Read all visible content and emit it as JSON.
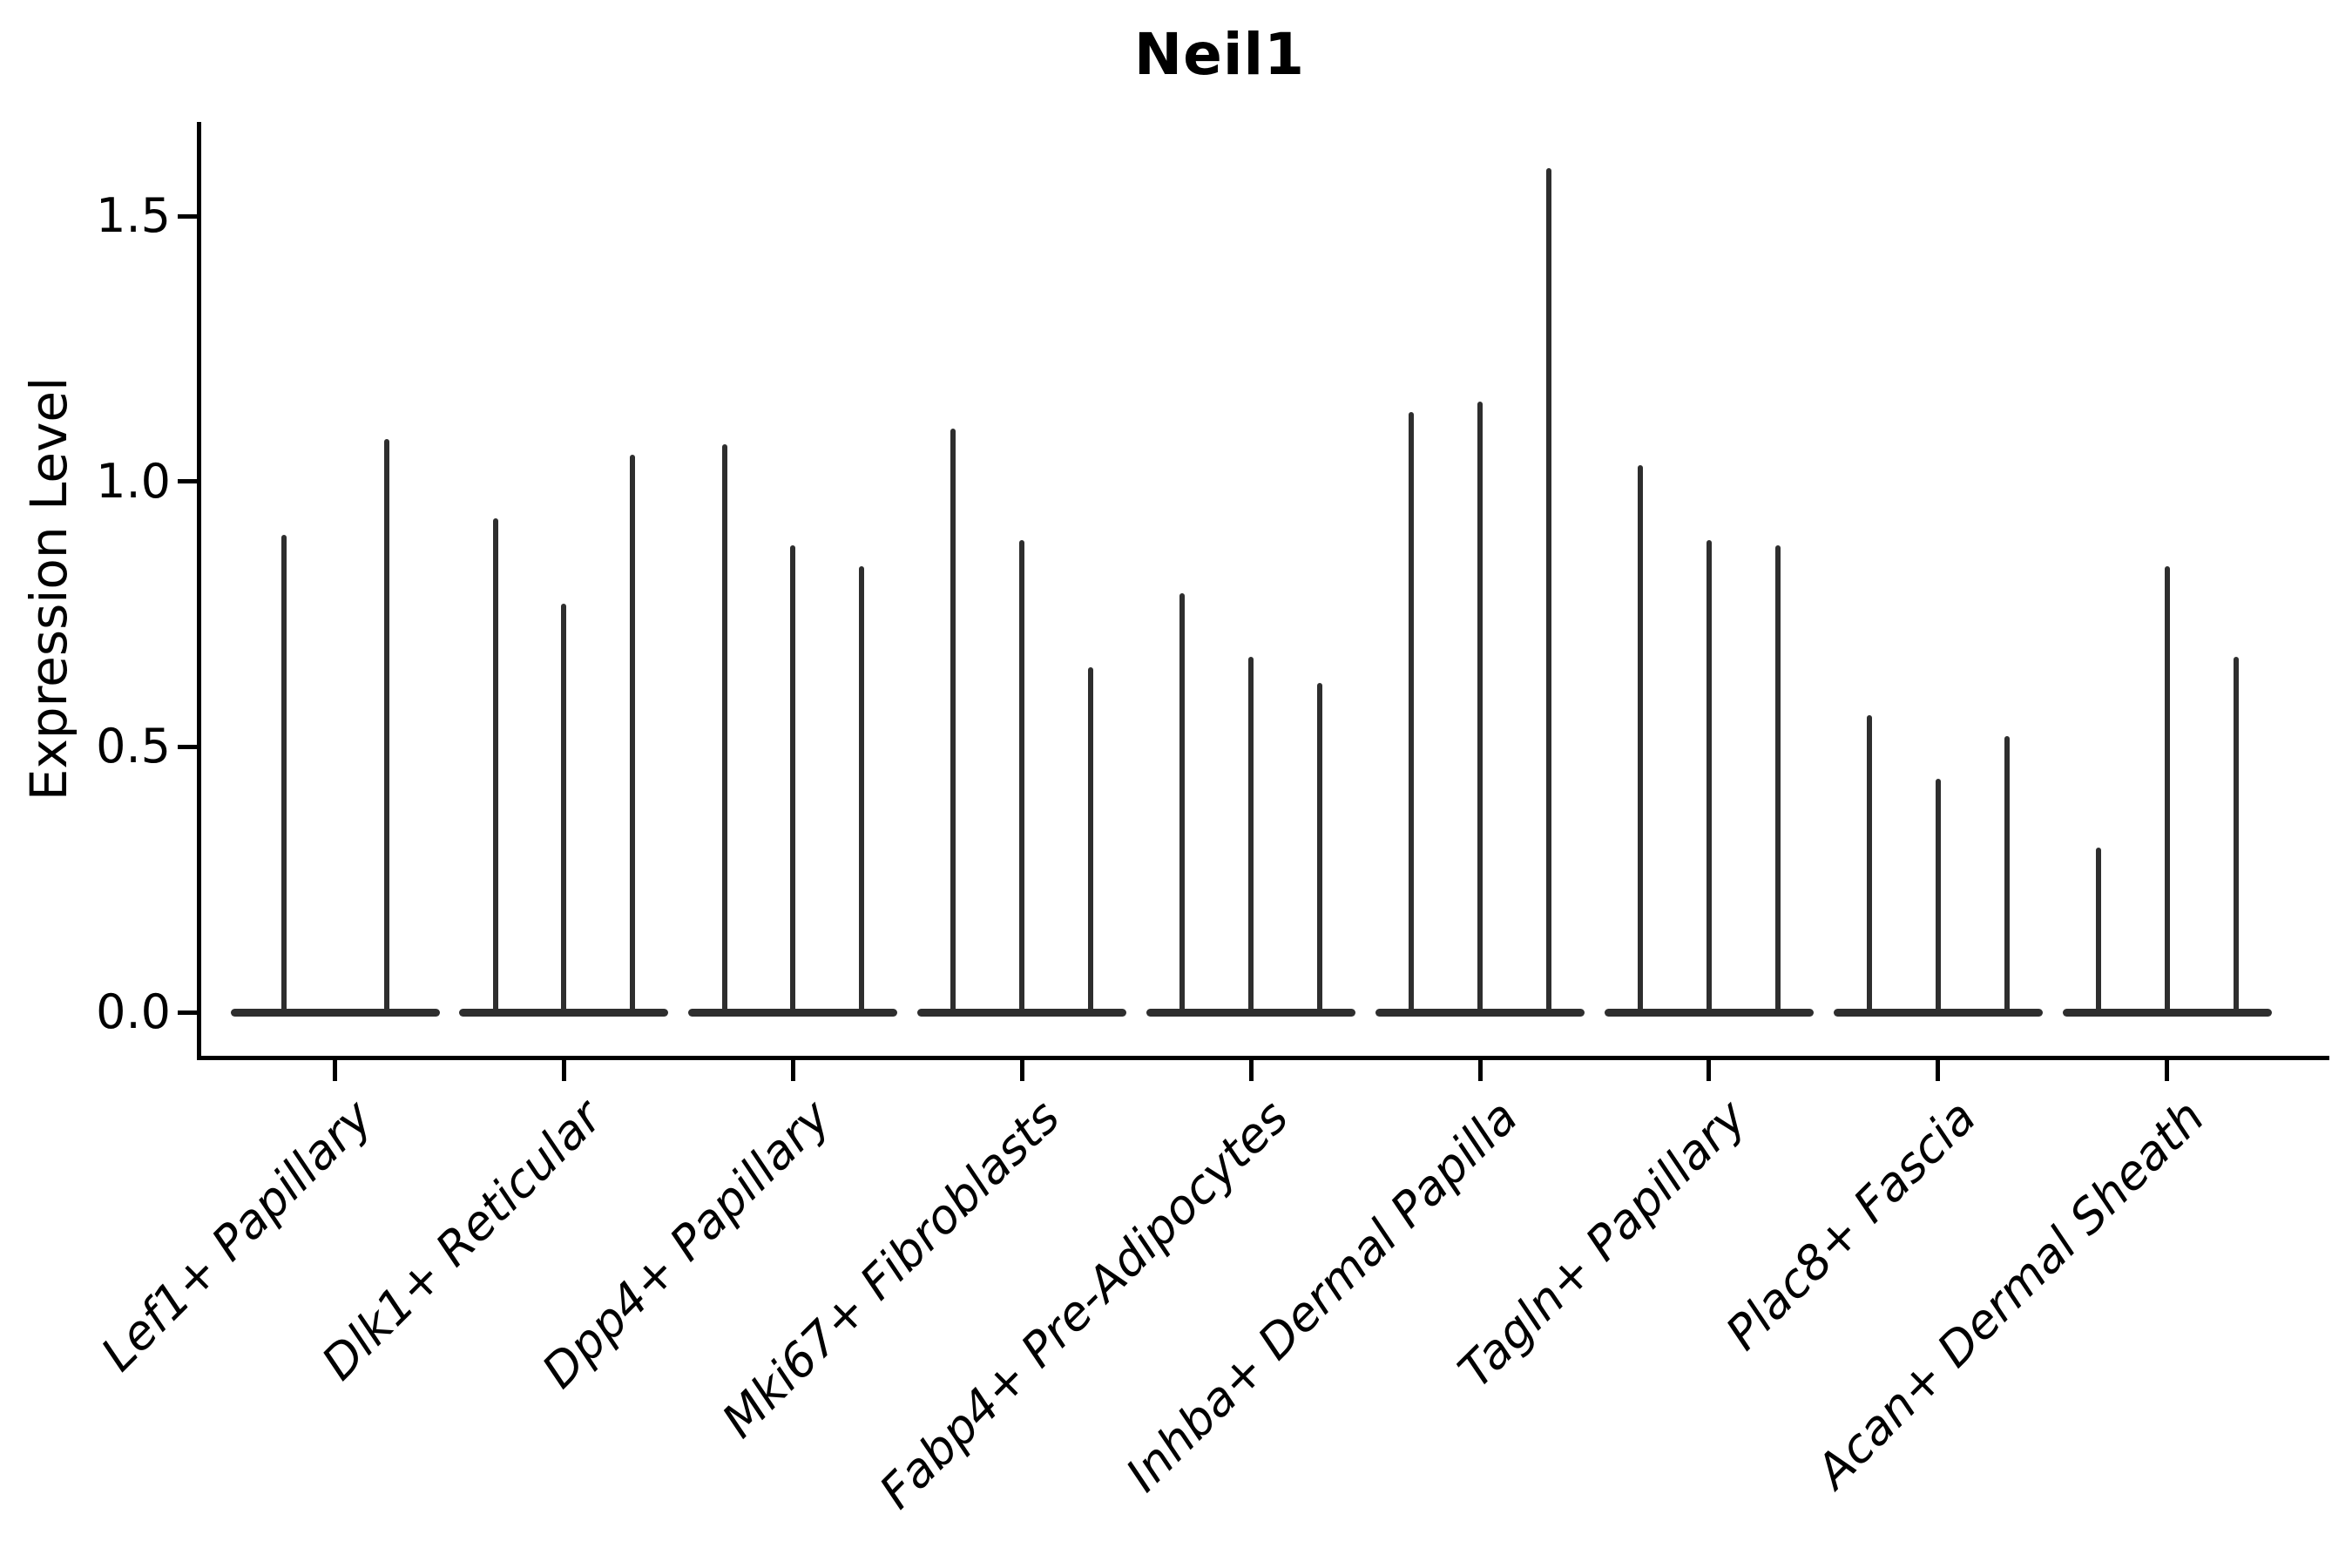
{
  "chart_data": {
    "type": "violin",
    "title": "Neil1",
    "ylabel": "Expression Level",
    "xlabel": "",
    "yticks": [
      0.0,
      0.5,
      1.0,
      1.5
    ],
    "ytick_labels": [
      "0.0",
      "0.5",
      "1.0",
      "1.5"
    ],
    "ylim": [
      -0.08,
      1.68
    ],
    "grid": false,
    "legend": "none",
    "background": "#ffffff",
    "violin_color": "#2e2e2e",
    "axis_color": "#000000",
    "categories": [
      "Lef1+ Papillary",
      "Dlk1+ Reticular",
      "Dpp4+ Papillary",
      "Mki67+ Fibroblasts",
      "Fabp4+ Pre-Adipocytes",
      "Inhba+ Dermal Papilla",
      "Tagln+ Papillary",
      "Plac8+ Fascia",
      "Acan+ Dermal Sheath"
    ],
    "groups": [
      {
        "category": "Lef1+ Papillary",
        "spike_heights": [
          0.9,
          1.08
        ]
      },
      {
        "category": "Dlk1+ Reticular",
        "spike_heights": [
          0.93,
          0.77,
          1.05
        ]
      },
      {
        "category": "Dpp4+ Papillary",
        "spike_heights": [
          1.07,
          0.88,
          0.84
        ]
      },
      {
        "category": "Mki67+ Fibroblasts",
        "spike_heights": [
          1.1,
          0.89,
          0.65
        ]
      },
      {
        "category": "Fabp4+ Pre-Adipocytes",
        "spike_heights": [
          0.79,
          0.67,
          0.62
        ]
      },
      {
        "category": "Inhba+ Dermal Papilla",
        "spike_heights": [
          1.13,
          1.15,
          1.59
        ]
      },
      {
        "category": "Tagln+ Papillary",
        "spike_heights": [
          1.03,
          0.89,
          0.88
        ]
      },
      {
        "category": "Plac8+ Fascia",
        "spike_heights": [
          0.56,
          0.44,
          0.52
        ]
      },
      {
        "category": "Acan+ Dermal Sheath",
        "spike_heights": [
          0.31,
          0.84,
          0.67
        ]
      }
    ]
  }
}
